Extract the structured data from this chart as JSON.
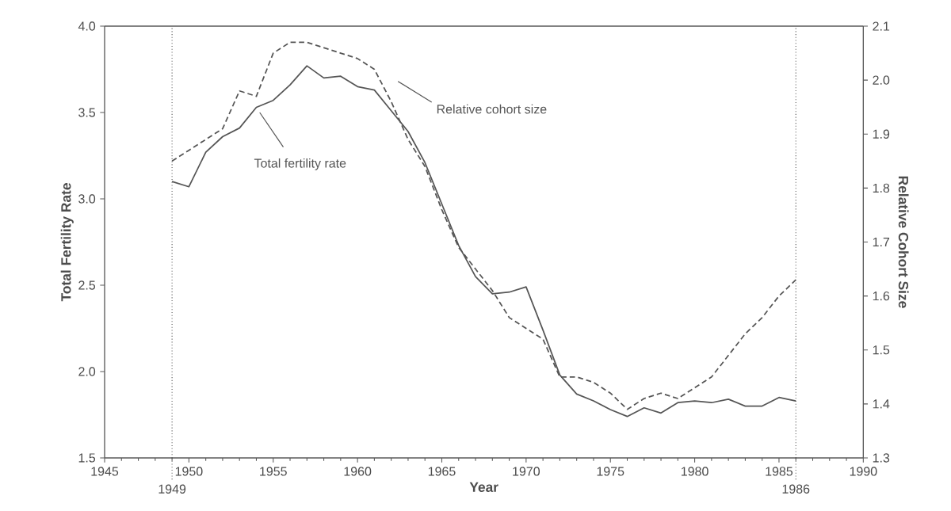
{
  "chart_data": {
    "type": "line",
    "xlabel": "Year",
    "ylabel": "Total Fertility Rate",
    "y2label": "Relative Cohort Size",
    "x": [
      1949,
      1950,
      1951,
      1952,
      1953,
      1954,
      1955,
      1956,
      1957,
      1958,
      1959,
      1960,
      1961,
      1962,
      1963,
      1964,
      1965,
      1966,
      1967,
      1968,
      1969,
      1970,
      1971,
      1972,
      1973,
      1974,
      1975,
      1976,
      1977,
      1978,
      1979,
      1980,
      1981,
      1982,
      1983,
      1984,
      1985,
      1986
    ],
    "series": [
      {
        "name": "Total fertility rate",
        "color": "#555555",
        "line_style": "solid",
        "values": [
          3.1,
          3.07,
          3.27,
          3.36,
          3.41,
          3.53,
          3.57,
          3.66,
          3.77,
          3.7,
          3.71,
          3.65,
          3.63,
          3.51,
          3.39,
          3.21,
          2.97,
          2.73,
          2.55,
          2.45,
          2.46,
          2.49,
          2.24,
          1.98,
          1.87,
          1.83,
          1.78,
          1.74,
          1.79,
          1.76,
          1.82,
          1.83,
          1.82,
          1.84,
          1.8,
          1.8,
          1.85,
          1.83
        ]
      },
      {
        "name": "Relative cohort size",
        "color": "#555555",
        "line_style": "dashed",
        "axis": "y2",
        "values": [
          1.85,
          1.87,
          1.89,
          1.91,
          1.98,
          1.97,
          2.05,
          2.07,
          2.07,
          2.06,
          2.05,
          2.04,
          2.02,
          1.96,
          1.89,
          1.84,
          1.76,
          1.69,
          1.65,
          1.61,
          1.56,
          1.54,
          1.52,
          1.45,
          1.45,
          1.44,
          1.42,
          1.39,
          1.41,
          1.42,
          1.41,
          1.43,
          1.45,
          1.49,
          1.53,
          1.56,
          1.6,
          1.63
        ]
      }
    ],
    "xlim": [
      1945,
      1990
    ],
    "xticks": [
      1945,
      1950,
      1955,
      1960,
      1965,
      1970,
      1975,
      1980,
      1985,
      1990
    ],
    "ylim": [
      1.5,
      4.0
    ],
    "yticks": [
      1.5,
      {
        "value": 2,
        "label": "2.0"
      },
      2.5,
      {
        "value": 3,
        "label": "3.0"
      },
      3.5,
      {
        "value": 4,
        "label": "4.0"
      }
    ],
    "y2lim": [
      1.3,
      2.1
    ],
    "y2ticks": [
      1.3,
      1.4,
      1.5,
      1.6,
      1.7,
      1.8,
      1.9,
      {
        "value": 2,
        "label": "2.0"
      },
      2.1
    ],
    "ref_lines": [
      {
        "axis": "x",
        "value": 1949,
        "label": "1949",
        "color": "#555555",
        "line_style": "dotted"
      },
      {
        "axis": "x",
        "value": 1986,
        "label": "1986",
        "color": "#555555",
        "line_style": "dotted"
      }
    ],
    "grid": false,
    "legend": false,
    "marker": "none"
  }
}
